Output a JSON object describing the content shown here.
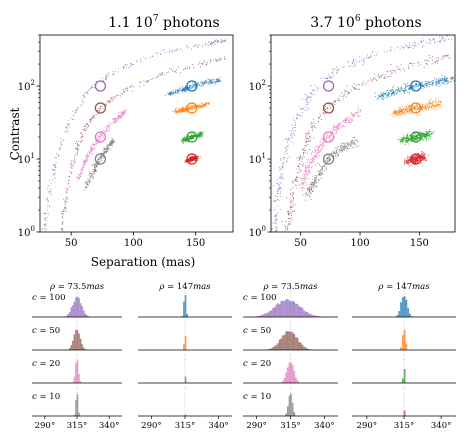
{
  "chart_data": [
    {
      "type": "scatter",
      "title": "1.1 10^7 photons",
      "title_base": "1.1 10",
      "title_exp": "7",
      "title_tail": " photons",
      "xlabel": "Separation (mas)",
      "ylabel": "Contrast",
      "x_scale": "linear",
      "y_scale": "log",
      "xlim": [
        25,
        180
      ],
      "ylim": [
        1,
        500
      ],
      "xticks": [
        50,
        100,
        150
      ],
      "yticks": [
        {
          "v": 1,
          "base": "10",
          "exp": "0"
        },
        {
          "v": 10,
          "base": "10",
          "exp": "1"
        },
        {
          "v": 100,
          "base": "10",
          "exp": "2"
        }
      ],
      "true_positions": [
        {
          "x": 73.5,
          "y": 100,
          "color": "#9467bd"
        },
        {
          "x": 73.5,
          "y": 50,
          "color": "#8c564b"
        },
        {
          "x": 73.5,
          "y": 20,
          "color": "#e377c2"
        },
        {
          "x": 73.5,
          "y": 10,
          "color": "#7f7f7f"
        },
        {
          "x": 147,
          "y": 100,
          "color": "#1f77b4"
        },
        {
          "x": 147,
          "y": 50,
          "color": "#ff7f0e"
        },
        {
          "x": 147,
          "y": 20,
          "color": "#2ca02c"
        },
        {
          "x": 147,
          "y": 10,
          "color": "#d62728"
        }
      ],
      "arcs": [
        {
          "color": "#9467bd",
          "points": [
            [
              28,
              1
            ],
            [
              32,
              3
            ],
            [
              38,
              10
            ],
            [
              48,
              30
            ],
            [
              62,
              80
            ],
            [
              85,
              160
            ],
            [
              120,
              280
            ],
            [
              160,
              380
            ],
            [
              175,
              430
            ]
          ]
        },
        {
          "color": "#8c564b",
          "points": [
            [
              42,
              1
            ],
            [
              46,
              3
            ],
            [
              52,
              10
            ],
            [
              60,
              25
            ],
            [
              73,
              50
            ],
            [
              95,
              90
            ],
            [
              130,
              160
            ],
            [
              175,
              240
            ]
          ]
        },
        {
          "color": "#e377c2",
          "points": [
            [
              55,
              5
            ],
            [
              63,
              11
            ],
            [
              73,
              20
            ],
            [
              84,
              32
            ],
            [
              93,
              45
            ]
          ]
        },
        {
          "color": "#7f7f7f",
          "points": [
            [
              62,
              4
            ],
            [
              68,
              7
            ],
            [
              73,
              10
            ],
            [
              79,
              14
            ],
            [
              84,
              18
            ]
          ]
        },
        {
          "color": "#1f77b4",
          "points": [
            [
              128,
              78
            ],
            [
              140,
              90
            ],
            [
              147,
              100
            ],
            [
              158,
              112
            ],
            [
              170,
              120
            ]
          ]
        },
        {
          "color": "#ff7f0e",
          "points": [
            [
              133,
              44
            ],
            [
              147,
              50
            ],
            [
              160,
              56
            ]
          ]
        },
        {
          "color": "#2ca02c",
          "points": [
            [
              140,
              18
            ],
            [
              147,
              20
            ],
            [
              155,
              22
            ]
          ]
        },
        {
          "color": "#d62728",
          "points": [
            [
              143,
              9.5
            ],
            [
              147,
              10
            ],
            [
              151,
              10.5
            ]
          ]
        }
      ]
    },
    {
      "type": "scatter",
      "title": "3.7 10^6 photons",
      "title_base": "3.7 10",
      "title_exp": "6",
      "title_tail": " photons",
      "xlabel": "",
      "ylabel": "",
      "x_scale": "linear",
      "y_scale": "log",
      "xlim": [
        25,
        180
      ],
      "ylim": [
        1,
        500
      ],
      "xticks": [
        50,
        100,
        150
      ],
      "yticks": [
        {
          "v": 1,
          "base": "10",
          "exp": "0"
        },
        {
          "v": 10,
          "base": "10",
          "exp": "1"
        },
        {
          "v": 100,
          "base": "10",
          "exp": "2"
        }
      ],
      "true_positions": [
        {
          "x": 73.5,
          "y": 100,
          "color": "#9467bd"
        },
        {
          "x": 73.5,
          "y": 50,
          "color": "#8c564b"
        },
        {
          "x": 73.5,
          "y": 20,
          "color": "#e377c2"
        },
        {
          "x": 73.5,
          "y": 10,
          "color": "#7f7f7f"
        },
        {
          "x": 147,
          "y": 100,
          "color": "#1f77b4"
        },
        {
          "x": 147,
          "y": 50,
          "color": "#ff7f0e"
        },
        {
          "x": 147,
          "y": 20,
          "color": "#2ca02c"
        },
        {
          "x": 147,
          "y": 10,
          "color": "#d62728"
        }
      ],
      "arcs": [
        {
          "color": "#9467bd",
          "points": [
            [
              28,
              1
            ],
            [
              31,
              3
            ],
            [
              36,
              10
            ],
            [
              45,
              30
            ],
            [
              58,
              80
            ],
            [
              80,
              160
            ],
            [
              115,
              280
            ],
            [
              155,
              400
            ],
            [
              178,
              460
            ]
          ]
        },
        {
          "color": "#8c564b",
          "points": [
            [
              38,
              1
            ],
            [
              43,
              3
            ],
            [
              50,
              10
            ],
            [
              58,
              25
            ],
            [
              72,
              50
            ],
            [
              95,
              95
            ],
            [
              130,
              170
            ],
            [
              178,
              260
            ]
          ]
        },
        {
          "color": "#e377c2",
          "points": [
            [
              50,
              4
            ],
            [
              58,
              9
            ],
            [
              70,
              18
            ],
            [
              85,
              30
            ],
            [
              100,
              45
            ]
          ]
        },
        {
          "color": "#7f7f7f",
          "points": [
            [
              55,
              3
            ],
            [
              62,
              5
            ],
            [
              73,
              10
            ],
            [
              85,
              14
            ],
            [
              97,
              18
            ]
          ]
        },
        {
          "color": "#1f77b4",
          "points": [
            [
              115,
              70
            ],
            [
              130,
              85
            ],
            [
              147,
              100
            ],
            [
              165,
              115
            ],
            [
              180,
              125
            ]
          ]
        },
        {
          "color": "#ff7f0e",
          "points": [
            [
              128,
              42
            ],
            [
              147,
              50
            ],
            [
              168,
              58
            ]
          ]
        },
        {
          "color": "#2ca02c",
          "points": [
            [
              135,
              18
            ],
            [
              147,
              20
            ],
            [
              160,
              22
            ]
          ]
        },
        {
          "color": "#d62728",
          "points": [
            [
              140,
              9.3
            ],
            [
              147,
              10
            ],
            [
              154,
              10.7
            ]
          ]
        }
      ]
    },
    {
      "type": "histogram",
      "description_columns": [
        "ρ = 73.5mas",
        "ρ = 147mas"
      ],
      "row_labels": [
        "c = 100",
        "c = 50",
        "c = 20",
        "c = 10"
      ],
      "xticks": [
        290,
        315,
        340
      ],
      "xticklabels": [
        "290°",
        "315°",
        "340°"
      ],
      "xlim": [
        280,
        350
      ],
      "col_titles": [
        {
          "sym": "ρ",
          "val": " = 73.5",
          "unit": "mas"
        },
        {
          "sym": "ρ",
          "val": " = 147",
          "unit": "mas"
        }
      ],
      "row_texts": [
        {
          "sym": "c",
          "val": " = 100"
        },
        {
          "sym": "c",
          "val": " = 50"
        },
        {
          "sym": "c",
          "val": " = 20"
        },
        {
          "sym": "c",
          "val": " = 10"
        }
      ],
      "panels": [
        {
          "photons": "1.1 10^7",
          "cells": [
            {
              "rho": 73.5,
              "c": 100,
              "center": 315,
              "sigma": 3.5,
              "height": 0.8,
              "color": "#9467bd"
            },
            {
              "rho": 73.5,
              "c": 50,
              "center": 315,
              "sigma": 2.5,
              "height": 0.85,
              "color": "#8c564b"
            },
            {
              "rho": 73.5,
              "c": 20,
              "center": 315,
              "sigma": 1.2,
              "height": 0.95,
              "color": "#e377c2"
            },
            {
              "rho": 73.5,
              "c": 10,
              "center": 315,
              "sigma": 0.8,
              "height": 0.95,
              "color": "#7f7f7f"
            },
            {
              "rho": 147,
              "c": 100,
              "center": 315,
              "sigma": 0.8,
              "height": 0.95,
              "color": "#1f77b4"
            },
            {
              "rho": 147,
              "c": 50,
              "center": 315,
              "sigma": 0.5,
              "height": 0.8,
              "color": "#ff7f0e"
            },
            {
              "rho": 147,
              "c": 20,
              "center": 315,
              "sigma": 0.3,
              "height": 0.6,
              "color": "#2ca02c"
            },
            {
              "rho": 147,
              "c": 10,
              "center": 315,
              "sigma": 0.2,
              "height": 0.4,
              "color": "#d62728"
            }
          ]
        },
        {
          "photons": "3.7 10^6",
          "cells": [
            {
              "rho": 73.5,
              "c": 100,
              "center": 313,
              "sigma": 9,
              "height": 0.7,
              "color": "#9467bd"
            },
            {
              "rho": 73.5,
              "c": 50,
              "center": 314,
              "sigma": 6,
              "height": 0.75,
              "color": "#8c564b"
            },
            {
              "rho": 73.5,
              "c": 20,
              "center": 315,
              "sigma": 2.5,
              "height": 0.9,
              "color": "#e377c2"
            },
            {
              "rho": 73.5,
              "c": 10,
              "center": 315,
              "sigma": 1.5,
              "height": 0.95,
              "color": "#7f7f7f"
            },
            {
              "rho": 147,
              "c": 100,
              "center": 315,
              "sigma": 2,
              "height": 0.9,
              "color": "#1f77b4"
            },
            {
              "rho": 147,
              "c": 50,
              "center": 315,
              "sigma": 1,
              "height": 0.85,
              "color": "#ff7f0e"
            },
            {
              "rho": 147,
              "c": 20,
              "center": 315,
              "sigma": 0.5,
              "height": 0.7,
              "color": "#2ca02c"
            },
            {
              "rho": 147,
              "c": 10,
              "center": 315,
              "sigma": 0.3,
              "height": 0.5,
              "color": "#d62728"
            }
          ]
        }
      ]
    }
  ]
}
